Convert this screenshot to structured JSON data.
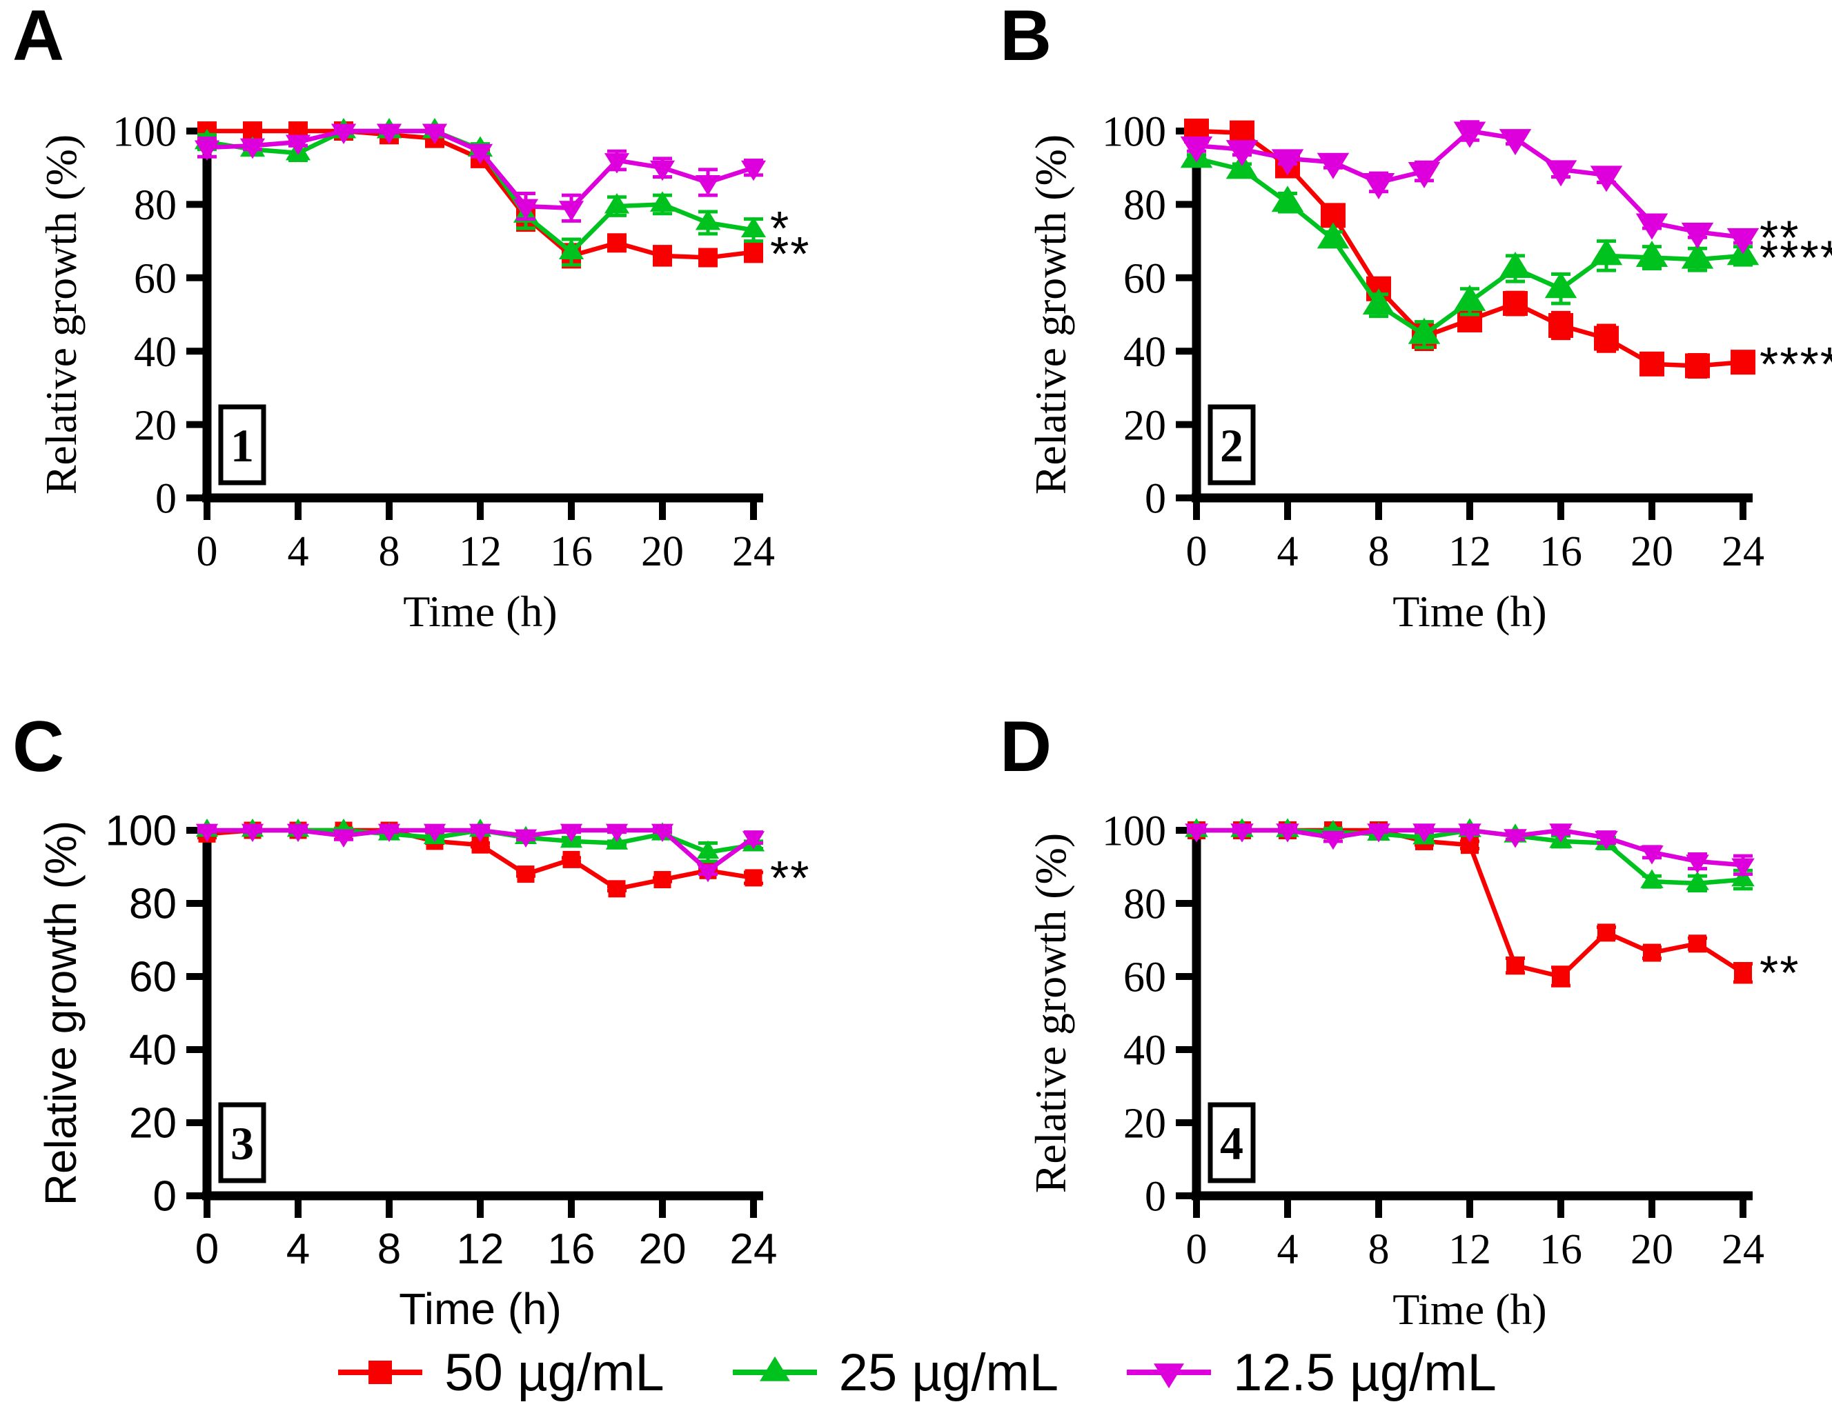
{
  "page": {
    "background": "#ffffff"
  },
  "colors": {
    "red": "#F80000",
    "green": "#00C21E",
    "magenta": "#DD00DD",
    "axis": "#000000",
    "annotation": "#000000"
  },
  "legend": {
    "items": [
      {
        "label": "50 µg/mL",
        "color_key": "red",
        "marker": "square"
      },
      {
        "label": "25 µg/mL",
        "color_key": "green",
        "marker": "triangle-up"
      },
      {
        "label": "12.5 µg/mL",
        "color_key": "magenta",
        "marker": "triangle-down"
      }
    ]
  },
  "chart_data": [
    {
      "panel": "A",
      "box_label": "1",
      "type": "line",
      "font": "serif",
      "xlabel": "Time (h)",
      "ylabel": "Relative growth (%)",
      "x": [
        0,
        2,
        4,
        6,
        8,
        10,
        12,
        14,
        16,
        18,
        20,
        22,
        24
      ],
      "xticks": [
        0,
        4,
        8,
        12,
        16,
        20,
        24
      ],
      "yticks": [
        0,
        20,
        40,
        60,
        80,
        100
      ],
      "xlim": [
        0,
        24
      ],
      "ylim": [
        0,
        100
      ],
      "series": [
        {
          "name": "50 µg/mL",
          "color_key": "red",
          "marker": "square",
          "values": [
            100,
            100,
            100,
            100,
            99,
            98,
            92.5,
            76.5,
            66,
            69.5,
            66,
            65.5,
            67
          ],
          "errors": [
            1,
            1,
            1,
            1,
            1.5,
            1.5,
            1.5,
            3.5,
            3,
            2,
            2.5,
            2,
            2.5
          ],
          "annotation": "**",
          "annotation_at": 66.5
        },
        {
          "name": "25 µg/mL",
          "color_key": "green",
          "marker": "triangle-up",
          "values": [
            97,
            95,
            94,
            100,
            100,
            100,
            95,
            77,
            67,
            79.5,
            80,
            75,
            73
          ],
          "errors": [
            2,
            1.5,
            2,
            0.5,
            0.5,
            0.5,
            1.5,
            3.5,
            3.5,
            2.5,
            2.5,
            3,
            3
          ],
          "annotation": "*",
          "annotation_at": 73.5
        },
        {
          "name": "12.5 µg/mL",
          "color_key": "magenta",
          "marker": "triangle-down",
          "values": [
            95.5,
            96,
            97,
            100,
            100,
            100,
            94.5,
            79.5,
            79,
            92,
            90,
            86,
            90
          ],
          "errors": [
            2.5,
            1,
            1,
            0.5,
            0.5,
            0.5,
            1.5,
            3.5,
            3.5,
            2.5,
            2.5,
            3.5,
            2
          ],
          "annotation": "",
          "annotation_at": null
        }
      ]
    },
    {
      "panel": "B",
      "box_label": "2",
      "type": "line",
      "font": "serif",
      "xlabel": "Time (h)",
      "ylabel": "Relative growth (%)",
      "x": [
        0,
        2,
        4,
        6,
        8,
        10,
        12,
        14,
        16,
        18,
        20,
        22,
        24
      ],
      "xticks": [
        0,
        4,
        8,
        12,
        16,
        20,
        24
      ],
      "yticks": [
        0,
        20,
        40,
        60,
        80,
        100
      ],
      "xlim": [
        0,
        24
      ],
      "ylim": [
        0,
        100
      ],
      "series": [
        {
          "name": "50 µg/mL",
          "color_key": "red",
          "marker": "square",
          "values": [
            100,
            99.5,
            90.5,
            77,
            57,
            44,
            48.5,
            53,
            47,
            43.5,
            36.5,
            36,
            37
          ],
          "errors": [
            1.5,
            1,
            2,
            2.5,
            2,
            3.5,
            2.5,
            3,
            3.5,
            3.5,
            2.5,
            3,
            2.5
          ],
          "annotation": "****",
          "annotation_at": 36.5
        },
        {
          "name": "25 µg/mL",
          "color_key": "green",
          "marker": "triangle-up",
          "values": [
            92.5,
            89.5,
            80.5,
            70.5,
            52.5,
            44.5,
            53.5,
            62.5,
            57,
            66,
            65.5,
            65,
            66
          ],
          "errors": [
            1,
            1.5,
            2.5,
            2,
            3,
            3.5,
            3.5,
            3.5,
            4,
            4,
            3,
            3,
            2.5
          ],
          "annotation": "****",
          "annotation_at": 65.5
        },
        {
          "name": "12.5 µg/mL",
          "color_key": "magenta",
          "marker": "triangle-down",
          "values": [
            96,
            95,
            92.5,
            91.5,
            86,
            89,
            100,
            98,
            89.5,
            88,
            75,
            72.5,
            71
          ],
          "errors": [
            1.5,
            1.5,
            1.5,
            1.5,
            2.5,
            2.5,
            2.5,
            1.5,
            2,
            2,
            1.5,
            1.5,
            1.5
          ],
          "annotation": "**",
          "annotation_at": 71
        }
      ]
    },
    {
      "panel": "C",
      "box_label": "3",
      "type": "line",
      "font": "sans",
      "xlabel": "Time (h)",
      "ylabel": "Relative growth (%)",
      "x": [
        0,
        2,
        4,
        6,
        8,
        10,
        12,
        14,
        16,
        18,
        20,
        22,
        24
      ],
      "xticks": [
        0,
        4,
        8,
        12,
        16,
        20,
        24
      ],
      "yticks": [
        0,
        20,
        40,
        60,
        80,
        100
      ],
      "xlim": [
        0,
        24
      ],
      "ylim": [
        0,
        100
      ],
      "series": [
        {
          "name": "50 µg/mL",
          "color_key": "red",
          "marker": "square",
          "values": [
            99,
            100,
            100,
            100,
            100,
            97,
            96,
            88,
            92,
            84,
            86.5,
            89,
            87
          ],
          "errors": [
            1,
            0.5,
            0.5,
            0.5,
            0.5,
            0.5,
            0.5,
            0.5,
            0.5,
            0.5,
            0.5,
            0.5,
            1.5
          ],
          "annotation": "**",
          "annotation_at": 87
        },
        {
          "name": "25 µg/mL",
          "color_key": "green",
          "marker": "triangle-up",
          "values": [
            100,
            100,
            100,
            100,
            99,
            98,
            100,
            98,
            97,
            96.5,
            99,
            94,
            96
          ],
          "errors": [
            0.5,
            0.5,
            0.5,
            0.5,
            0.5,
            0.5,
            0.5,
            0.5,
            1,
            0.5,
            0.5,
            2.5,
            1
          ],
          "annotation": "",
          "annotation_at": null
        },
        {
          "name": "12.5 µg/mL",
          "color_key": "magenta",
          "marker": "triangle-down",
          "values": [
            100,
            100,
            100,
            98.5,
            100,
            100,
            100,
            98.5,
            100,
            100,
            100,
            89,
            98
          ],
          "errors": [
            0.5,
            0.5,
            0.5,
            1,
            0.5,
            0.5,
            0.5,
            1,
            0.5,
            0.5,
            0.5,
            1,
            1.5
          ],
          "annotation": "",
          "annotation_at": null
        }
      ]
    },
    {
      "panel": "D",
      "box_label": "4",
      "type": "line",
      "font": "serif",
      "xlabel": "Time (h)",
      "ylabel": "Relative growth (%)",
      "x": [
        0,
        2,
        4,
        6,
        8,
        10,
        12,
        14,
        16,
        18,
        20,
        22,
        24
      ],
      "xticks": [
        0,
        4,
        8,
        12,
        16,
        20,
        24
      ],
      "yticks": [
        0,
        20,
        40,
        60,
        80,
        100
      ],
      "xlim": [
        0,
        24
      ],
      "ylim": [
        0,
        100
      ],
      "series": [
        {
          "name": "50 µg/mL",
          "color_key": "red",
          "marker": "square",
          "values": [
            100,
            100,
            100,
            100,
            100,
            97,
            96,
            63,
            60,
            72,
            66.5,
            69,
            61
          ],
          "errors": [
            0.5,
            0.5,
            0.5,
            0.5,
            0.5,
            1,
            1,
            2,
            2.5,
            1.5,
            1.5,
            1.5,
            2.5
          ],
          "annotation": "**",
          "annotation_at": 61
        },
        {
          "name": "25 µg/mL",
          "color_key": "green",
          "marker": "triangle-up",
          "values": [
            100,
            100,
            100,
            99.5,
            99,
            98,
            100,
            98.5,
            97,
            96.5,
            86,
            85.5,
            86.5
          ],
          "errors": [
            0.5,
            0.5,
            0.5,
            1,
            1,
            1,
            0.5,
            1,
            1.5,
            1.5,
            1.5,
            2,
            2.5
          ],
          "annotation": "",
          "annotation_at": null
        },
        {
          "name": "12.5 µg/mL",
          "color_key": "magenta",
          "marker": "triangle-down",
          "values": [
            100,
            100,
            100,
            98,
            100,
            100,
            100,
            98.5,
            100,
            98,
            94,
            91.5,
            90.5
          ],
          "errors": [
            0.5,
            0.5,
            0.5,
            1,
            0.5,
            0.5,
            1,
            1,
            1,
            1.5,
            1.5,
            2,
            2.5
          ],
          "annotation": "",
          "annotation_at": null
        }
      ]
    }
  ]
}
